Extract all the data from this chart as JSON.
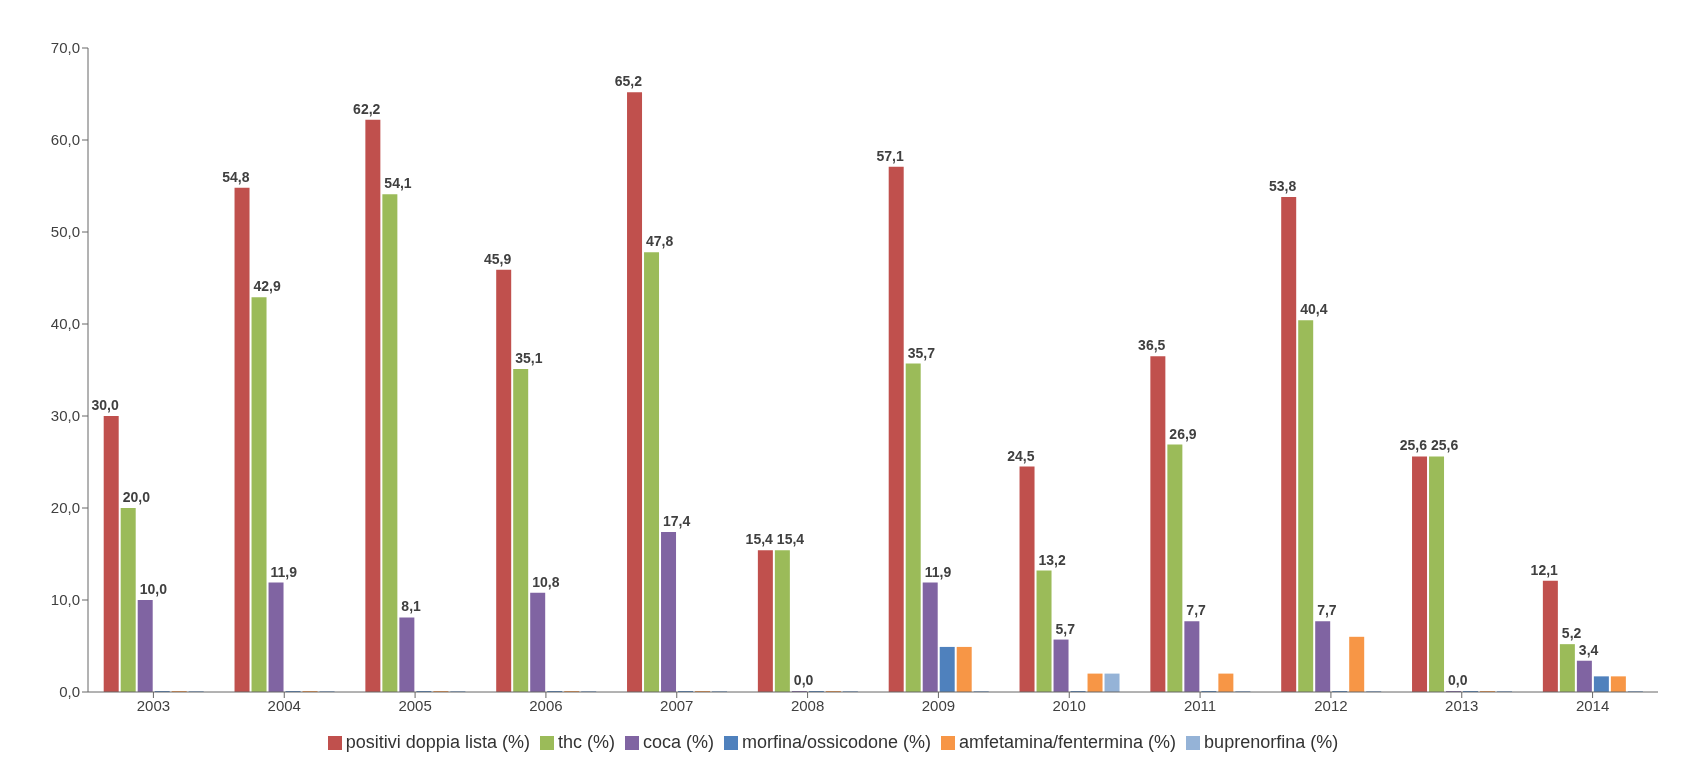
{
  "chart_data": {
    "type": "bar",
    "categories": [
      "2003",
      "2004",
      "2005",
      "2006",
      "2007",
      "2008",
      "2009",
      "2010",
      "2011",
      "2012",
      "2013",
      "2014"
    ],
    "series": [
      {
        "name": "positivi doppia lista (%)",
        "color": "#c0504d",
        "values": [
          30.0,
          54.8,
          62.2,
          45.9,
          65.2,
          15.4,
          57.1,
          24.5,
          36.5,
          53.8,
          25.6,
          12.1
        ],
        "value_labels": [
          "30,0",
          "54,8",
          "62,2",
          "45,9",
          "65,2",
          "15,4",
          "57,1",
          "24,5",
          "36,5",
          "53,8",
          "25,6",
          "12,1"
        ]
      },
      {
        "name": "thc (%)",
        "color": "#9bbb59",
        "values": [
          20.0,
          42.9,
          54.1,
          35.1,
          47.8,
          15.4,
          35.7,
          13.2,
          26.9,
          40.4,
          25.6,
          5.2
        ],
        "value_labels": [
          "20,0",
          "42,9",
          "54,1",
          "35,1",
          "47,8",
          "15,4",
          "35,7",
          "13,2",
          "26,9",
          "40,4",
          "25,6",
          "5,2"
        ]
      },
      {
        "name": "coca (%)",
        "color": "#8064a2",
        "values": [
          10.0,
          11.9,
          8.1,
          10.8,
          17.4,
          0.0,
          11.9,
          5.7,
          7.7,
          7.7,
          0.0,
          3.4
        ],
        "value_labels": [
          "10,0",
          "11,9",
          "8,1",
          "10,8",
          "17,4",
          "0,0",
          "11,9",
          "5,7",
          "7,7",
          "7,7",
          "0,0",
          "3,4"
        ]
      },
      {
        "name": "morfina/ossicodone (%)",
        "color": "#4f81bd",
        "values": [
          0,
          0,
          0,
          0,
          0,
          0,
          4.9,
          0,
          0,
          0,
          0,
          1.7
        ]
      },
      {
        "name": "amfetamina/fentermina (%)",
        "color": "#f79646",
        "values": [
          0,
          0,
          0,
          0,
          0,
          0,
          4.9,
          2.0,
          2.0,
          6.0,
          0,
          1.7
        ]
      },
      {
        "name": "buprenorfina (%)",
        "color": "#95b3d7",
        "values": [
          0,
          0,
          0,
          0,
          0,
          0,
          0,
          2.0,
          0,
          0,
          0,
          0
        ]
      }
    ],
    "ylim": [
      0,
      70
    ],
    "yticks": [
      {
        "value": 0,
        "label": "0,0"
      },
      {
        "value": 10,
        "label": "10,0"
      },
      {
        "value": 20,
        "label": "20,0"
      },
      {
        "value": 30,
        "label": "30,0"
      },
      {
        "value": 40,
        "label": "40,0"
      },
      {
        "value": 50,
        "label": "50,0"
      },
      {
        "value": 60,
        "label": "60,0"
      },
      {
        "value": 70,
        "label": "70,0"
      }
    ],
    "grid": false,
    "legend": "bottom"
  }
}
